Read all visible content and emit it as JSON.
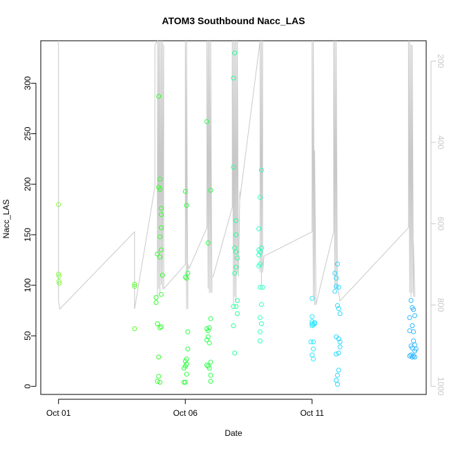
{
  "chart_data": {
    "type": "scatter",
    "title": "ATOM3 Southbound Nacc_LAS",
    "xlabel": "Date",
    "ylabel": "Nacc_LAS",
    "x_unit": "days since Oct 01",
    "xlim": [
      -0.7,
      14.5
    ],
    "ylim": [
      -8,
      342
    ],
    "x_ticks": [
      {
        "value": 0,
        "label": "Oct 01"
      },
      {
        "value": 5,
        "label": "Oct 06"
      },
      {
        "value": 10,
        "label": "Oct 11"
      }
    ],
    "y_ticks": [
      0,
      50,
      100,
      150,
      200,
      250,
      300
    ],
    "right_axis": {
      "description": "secondary axis for grey line trace (inverted)",
      "ylim": [
        1020,
        150
      ],
      "ticks": [
        200,
        400,
        600,
        800,
        1000
      ],
      "color": "#c8c8c8"
    },
    "scatter_series": [
      {
        "color": "#7fff33",
        "points": [
          [
            0.0,
            180
          ],
          [
            0.0,
            111
          ],
          [
            0.02,
            109
          ],
          [
            0.02,
            104
          ],
          [
            0.03,
            102
          ]
        ]
      },
      {
        "color": "#55ff2a",
        "points": [
          [
            3.0,
            101
          ],
          [
            3.0,
            99
          ],
          [
            3.0,
            57
          ]
        ]
      },
      {
        "color": "#33ff2a",
        "points": [
          [
            3.95,
            287
          ],
          [
            4.0,
            205
          ],
          [
            3.95,
            197
          ],
          [
            4.0,
            195
          ],
          [
            4.05,
            176
          ],
          [
            4.05,
            170
          ],
          [
            4.05,
            157
          ],
          [
            4.0,
            148
          ],
          [
            4.05,
            135
          ],
          [
            3.9,
            131
          ],
          [
            4.0,
            128
          ],
          [
            4.1,
            110
          ],
          [
            3.85,
            88
          ],
          [
            3.85,
            83
          ],
          [
            4.05,
            91
          ],
          [
            3.9,
            62
          ],
          [
            4.0,
            58
          ],
          [
            4.05,
            59
          ],
          [
            3.95,
            29
          ],
          [
            3.95,
            10
          ],
          [
            4.0,
            4
          ],
          [
            3.9,
            5
          ]
        ]
      },
      {
        "color": "#2aff3a",
        "points": [
          [
            5.0,
            193
          ],
          [
            5.05,
            179
          ],
          [
            5.1,
            112
          ],
          [
            5.05,
            107
          ],
          [
            5.0,
            108
          ],
          [
            5.1,
            54
          ],
          [
            5.1,
            37
          ],
          [
            5.05,
            27
          ],
          [
            5.0,
            25
          ],
          [
            5.05,
            22
          ],
          [
            5.0,
            20
          ],
          [
            4.95,
            18
          ],
          [
            5.05,
            12
          ],
          [
            4.95,
            4
          ],
          [
            5.0,
            4
          ]
        ]
      },
      {
        "color": "#2aff4a",
        "points": [
          [
            5.85,
            262
          ],
          [
            6.0,
            194
          ],
          [
            5.9,
            142
          ],
          [
            5.85,
            57
          ],
          [
            5.9,
            55
          ],
          [
            5.95,
            58
          ],
          [
            6.0,
            67
          ],
          [
            5.9,
            49
          ],
          [
            5.85,
            46
          ],
          [
            5.95,
            43
          ],
          [
            5.85,
            21
          ],
          [
            5.9,
            20
          ],
          [
            6.0,
            24
          ],
          [
            5.95,
            18
          ],
          [
            6.0,
            11
          ],
          [
            6.0,
            5
          ]
        ]
      },
      {
        "color": "#2aff9a",
        "points": [
          [
            6.95,
            330
          ],
          [
            6.9,
            305
          ],
          [
            6.9,
            217
          ],
          [
            7.0,
            164
          ],
          [
            7.0,
            150
          ],
          [
            6.95,
            137
          ],
          [
            7.0,
            133
          ],
          [
            7.05,
            127
          ],
          [
            7.0,
            118
          ],
          [
            6.95,
            112
          ],
          [
            7.05,
            85
          ],
          [
            6.9,
            79
          ],
          [
            7.0,
            79
          ],
          [
            7.05,
            72
          ],
          [
            6.9,
            60
          ],
          [
            6.95,
            33
          ]
        ]
      },
      {
        "color": "#2affc0",
        "points": [
          [
            7.95,
            187
          ],
          [
            8.0,
            214
          ],
          [
            7.9,
            156
          ],
          [
            8.0,
            137
          ],
          [
            7.9,
            135
          ],
          [
            7.95,
            133
          ],
          [
            7.9,
            130
          ],
          [
            7.95,
            121
          ],
          [
            7.9,
            119
          ],
          [
            7.95,
            98
          ],
          [
            8.05,
            98
          ],
          [
            8.0,
            81
          ],
          [
            7.95,
            68
          ],
          [
            8.0,
            62
          ],
          [
            7.95,
            54
          ],
          [
            7.95,
            45
          ]
        ]
      },
      {
        "color": "#2ae8ff",
        "points": [
          [
            10.0,
            87
          ],
          [
            10.0,
            69
          ],
          [
            10.0,
            64
          ],
          [
            10.1,
            63
          ],
          [
            10.1,
            62
          ],
          [
            10.05,
            61
          ],
          [
            10.0,
            62
          ],
          [
            10.0,
            60
          ],
          [
            10.05,
            44
          ],
          [
            9.95,
            44
          ],
          [
            10.05,
            37
          ],
          [
            10.0,
            31
          ],
          [
            10.05,
            27
          ]
        ]
      },
      {
        "color": "#2ad8ff",
        "points": [
          [
            10.9,
            112
          ],
          [
            10.95,
            107
          ],
          [
            11.0,
            121
          ],
          [
            10.95,
            99
          ],
          [
            11.05,
            98
          ],
          [
            10.9,
            94
          ],
          [
            11.0,
            80
          ],
          [
            11.05,
            77
          ],
          [
            11.1,
            72
          ],
          [
            10.95,
            49
          ],
          [
            11.05,
            47
          ],
          [
            11.1,
            44
          ],
          [
            11.1,
            39
          ],
          [
            11.05,
            33
          ],
          [
            10.95,
            32
          ],
          [
            11.05,
            16
          ],
          [
            11.0,
            11
          ],
          [
            10.95,
            6
          ],
          [
            11.0,
            2
          ]
        ]
      },
      {
        "color": "#2ab4ff",
        "points": [
          [
            13.9,
            85
          ],
          [
            13.95,
            78
          ],
          [
            14.0,
            76
          ],
          [
            14.05,
            70
          ],
          [
            13.85,
            68
          ],
          [
            13.95,
            60
          ],
          [
            14.0,
            54
          ],
          [
            13.85,
            55
          ],
          [
            14.0,
            45
          ],
          [
            14.05,
            41
          ],
          [
            13.9,
            40
          ],
          [
            13.95,
            38
          ],
          [
            14.05,
            35
          ],
          [
            14.1,
            37
          ],
          [
            13.9,
            31
          ],
          [
            14.0,
            30
          ],
          [
            14.05,
            29
          ],
          [
            13.85,
            30
          ],
          [
            13.95,
            29
          ]
        ]
      }
    ],
    "line_series": {
      "name": "grey trace (right axis, inverted)",
      "color": "#c8c8c8",
      "points": [
        [
          0.0,
          120
        ],
        [
          0.0,
          790
        ],
        [
          0.05,
          810
        ],
        [
          3.0,
          620
        ],
        [
          3.0,
          760
        ],
        [
          3.0,
          810
        ],
        [
          3.8,
          510
        ],
        [
          3.8,
          160
        ],
        [
          3.9,
          150
        ],
        [
          3.9,
          780
        ],
        [
          3.95,
          150
        ],
        [
          3.95,
          760
        ],
        [
          4.0,
          150
        ],
        [
          4.0,
          770
        ],
        [
          4.05,
          150
        ],
        [
          4.05,
          750
        ],
        [
          4.1,
          150
        ],
        [
          4.1,
          760
        ],
        [
          4.15,
          160
        ],
        [
          4.15,
          760
        ],
        [
          5.0,
          700
        ],
        [
          5.0,
          120
        ],
        [
          5.05,
          810
        ],
        [
          5.05,
          120
        ],
        [
          5.1,
          810
        ],
        [
          5.1,
          700
        ],
        [
          5.15,
          710
        ],
        [
          5.85,
          610
        ],
        [
          5.85,
          120
        ],
        [
          5.9,
          760
        ],
        [
          5.9,
          130
        ],
        [
          5.95,
          770
        ],
        [
          5.95,
          130
        ],
        [
          6.0,
          770
        ],
        [
          6.0,
          140
        ],
        [
          6.05,
          770
        ],
        [
          6.05,
          730
        ],
        [
          6.1,
          730
        ],
        [
          6.85,
          560
        ],
        [
          6.85,
          120
        ],
        [
          6.9,
          800
        ],
        [
          6.9,
          130
        ],
        [
          6.95,
          780
        ],
        [
          6.95,
          120
        ],
        [
          7.0,
          790
        ],
        [
          7.0,
          150
        ],
        [
          7.05,
          720
        ],
        [
          7.05,
          130
        ],
        [
          7.1,
          730
        ],
        [
          7.15,
          520
        ],
        [
          7.15,
          540
        ],
        [
          7.95,
          150
        ],
        [
          7.95,
          720
        ],
        [
          8.0,
          130
        ],
        [
          8.0,
          750
        ],
        [
          8.05,
          150
        ],
        [
          8.05,
          720
        ],
        [
          8.1,
          680
        ],
        [
          8.1,
          680
        ],
        [
          10.0,
          620
        ],
        [
          10.0,
          130
        ],
        [
          10.05,
          780
        ],
        [
          10.05,
          150
        ],
        [
          10.1,
          800
        ],
        [
          10.1,
          420
        ],
        [
          10.15,
          770
        ],
        [
          10.15,
          800
        ],
        [
          10.85,
          620
        ],
        [
          10.85,
          150
        ],
        [
          10.9,
          760
        ],
        [
          10.9,
          150
        ],
        [
          10.95,
          760
        ],
        [
          10.95,
          150
        ],
        [
          11.0,
          750
        ],
        [
          11.05,
          770
        ],
        [
          11.1,
          790
        ],
        [
          13.8,
          610
        ],
        [
          13.8,
          140
        ],
        [
          13.85,
          770
        ],
        [
          13.85,
          150
        ],
        [
          13.9,
          780
        ],
        [
          13.9,
          160
        ],
        [
          13.95,
          770
        ],
        [
          13.95,
          160
        ],
        [
          14.0,
          780
        ],
        [
          14.0,
          650
        ],
        [
          14.05,
          780
        ]
      ]
    }
  }
}
